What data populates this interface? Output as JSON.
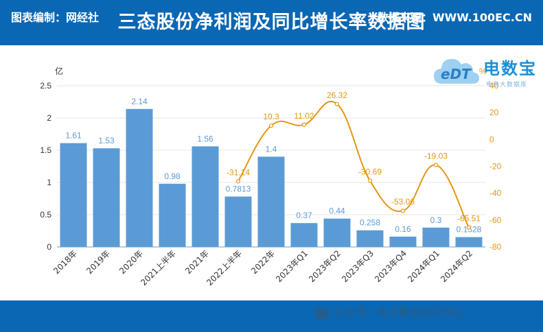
{
  "title": "三态股份净利润及同比增长率数据图",
  "footer": {
    "left": "图表编制：网经社",
    "right": "数据来源：WWW.100EC.CN",
    "watermark": "公众号 · 电子商务研究中心"
  },
  "logo": {
    "name": "电数宝",
    "sub": "电商大数据库",
    "mark": "eDT"
  },
  "colors": {
    "header": "#0a67b4",
    "bar": "#5b9bd5",
    "line": "#e59612",
    "bar_label": "#5b9bd5",
    "line_label": "#e59612"
  },
  "chart_data": {
    "type": "bar",
    "title": "",
    "categories": [
      "2018年",
      "2019年",
      "2020年",
      "2021上半年",
      "2021年",
      "2022上半年",
      "2022年",
      "2023年Q1",
      "2023年Q2",
      "2023年Q3",
      "2023年Q4",
      "2024年Q1",
      "2024年Q2"
    ],
    "series": [
      {
        "type": "bar",
        "axis": "left",
        "values": [
          1.61,
          1.53,
          2.14,
          0.98,
          1.56,
          0.7813,
          1.4,
          0.37,
          0.44,
          0.258,
          0.16,
          0.3,
          0.1528
        ],
        "labels": [
          "1.61",
          "1.53",
          "2.14",
          "0.98",
          "1.56",
          "0.7813",
          "1.4",
          "0.37",
          "0.44",
          "0.258",
          "0.16",
          "0.3",
          "0.1528"
        ]
      },
      {
        "type": "line",
        "axis": "right",
        "values": [
          null,
          null,
          null,
          null,
          null,
          -31.14,
          10.3,
          11.02,
          26.32,
          -30.69,
          -53.06,
          -19.03,
          -65.51
        ],
        "labels": [
          "",
          "",
          "",
          "",
          "",
          "-31.14",
          "10.3",
          "11.02",
          "26.32",
          "-30.69",
          "-53.06",
          "-19.03",
          "-65.51"
        ]
      }
    ],
    "y_left": {
      "unit": "亿",
      "min": 0,
      "max": 2.5,
      "ticks": [
        "0",
        "0.5",
        "1",
        "1.5",
        "2",
        "2.5"
      ]
    },
    "y_right": {
      "unit": "%",
      "min": -80,
      "max": 40,
      "ticks": [
        "-80",
        "-60",
        "-40",
        "-20",
        "0",
        "20",
        "40"
      ]
    },
    "grid": true,
    "legend": "none"
  }
}
